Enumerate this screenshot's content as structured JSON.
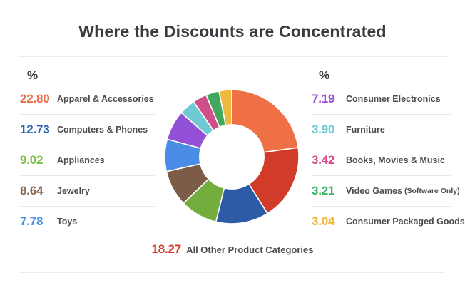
{
  "title": "Where the Discounts are Concentrated",
  "left_list": {
    "header": "%",
    "items": [
      {
        "value": "22.80",
        "label": "Apparel & Accessories",
        "color": "#e96c47"
      },
      {
        "value": "12.73",
        "label": "Computers & Phones",
        "color": "#2b61b5"
      },
      {
        "value": "9.02",
        "label": "Appliances",
        "color": "#7cbf42"
      },
      {
        "value": "8.64",
        "label": "Jewelry",
        "color": "#8a664d"
      },
      {
        "value": "7.78",
        "label": "Toys",
        "color": "#4a90e8"
      }
    ]
  },
  "right_list": {
    "header": "%",
    "items": [
      {
        "value": "7.19",
        "label": "Consumer Electronics",
        "color": "#9a4fd8"
      },
      {
        "value": "3.90",
        "label": "Furniture",
        "color": "#6fcbd6"
      },
      {
        "value": "3.42",
        "label": "Books, Movies & Music",
        "color": "#d64784"
      },
      {
        "value": "3.21",
        "label": "Video Games",
        "label_small": "(Software Only)",
        "color": "#3fb269"
      },
      {
        "value": "3.04",
        "label": "Consumer Packaged Goods",
        "color": "#f0b53d"
      }
    ]
  },
  "footer_item": {
    "value": "18.27",
    "label": "All Other Product Categories",
    "color": "#d63b2c"
  },
  "chart_data": {
    "type": "pie",
    "subtype": "donut",
    "title": "Where the Discounts are Concentrated",
    "unit": "%",
    "start_angle_deg": -90,
    "direction": "clockwise",
    "donut_hole_ratio": 0.48,
    "segments": [
      {
        "label": "Apparel & Accessories",
        "value": 22.8,
        "color": "#ee7044"
      },
      {
        "label": "All Other Product Categories",
        "value": 18.27,
        "color": "#d13b2a"
      },
      {
        "label": "Computers & Phones",
        "value": 12.73,
        "color": "#2d5ba6"
      },
      {
        "label": "Appliances",
        "value": 9.02,
        "color": "#72ad3d"
      },
      {
        "label": "Jewelry",
        "value": 8.64,
        "color": "#7c5b48"
      },
      {
        "label": "Toys",
        "value": 7.78,
        "color": "#4a8de6"
      },
      {
        "label": "Consumer Electronics",
        "value": 7.19,
        "color": "#9150d5"
      },
      {
        "label": "Furniture",
        "value": 3.9,
        "color": "#6fc9d3"
      },
      {
        "label": "Books, Movies & Music",
        "value": 3.42,
        "color": "#cf4f8b"
      },
      {
        "label": "Video Games (Software Only)",
        "value": 3.21,
        "color": "#44a75f"
      },
      {
        "label": "Consumer Packaged Goods",
        "value": 3.04,
        "color": "#edb93e"
      }
    ]
  }
}
